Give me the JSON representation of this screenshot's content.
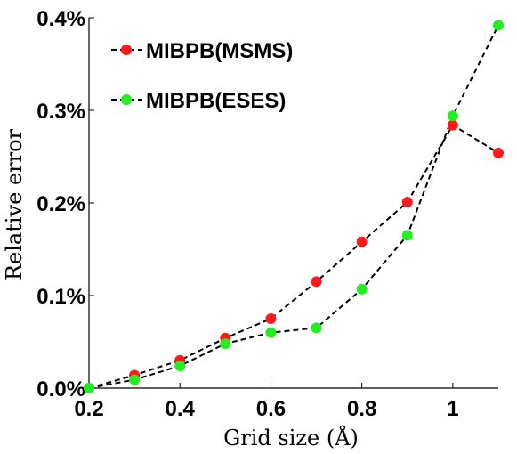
{
  "chart_data": {
    "type": "line",
    "xlabel": "Grid size (Å)",
    "ylabel": "Relative error",
    "xlim": [
      0.2,
      1.1
    ],
    "ylim": [
      0,
      0.4
    ],
    "x_ticks": [
      0.2,
      0.4,
      0.6,
      0.8,
      1
    ],
    "x_tick_labels": [
      "0.2",
      "0.4",
      "0.6",
      "0.8",
      "1"
    ],
    "y_ticks": [
      0,
      0.1,
      0.2,
      0.3,
      0.4
    ],
    "y_tick_labels": [
      "0.0%",
      "0.1%",
      "0.2%",
      "0.3%",
      "0.4%"
    ],
    "grid": false,
    "legend_position": "top-left",
    "series": [
      {
        "name": "MIBPB(MSMS)",
        "color": "#ff1a1a",
        "line_style": "dashed",
        "x": [
          0.2,
          0.3,
          0.4,
          0.5,
          0.6,
          0.7,
          0.8,
          0.9,
          1.0,
          1.1
        ],
        "y": [
          0.0,
          0.014,
          0.03,
          0.054,
          0.075,
          0.115,
          0.158,
          0.201,
          0.284,
          0.254
        ]
      },
      {
        "name": "MIBPB(ESES)",
        "color": "#22ee22",
        "line_style": "dashed",
        "x": [
          0.2,
          0.3,
          0.4,
          0.5,
          0.6,
          0.7,
          0.8,
          0.9,
          1.0,
          1.1
        ],
        "y": [
          0.0,
          0.009,
          0.024,
          0.048,
          0.06,
          0.065,
          0.107,
          0.165,
          0.294,
          0.392
        ]
      }
    ]
  }
}
